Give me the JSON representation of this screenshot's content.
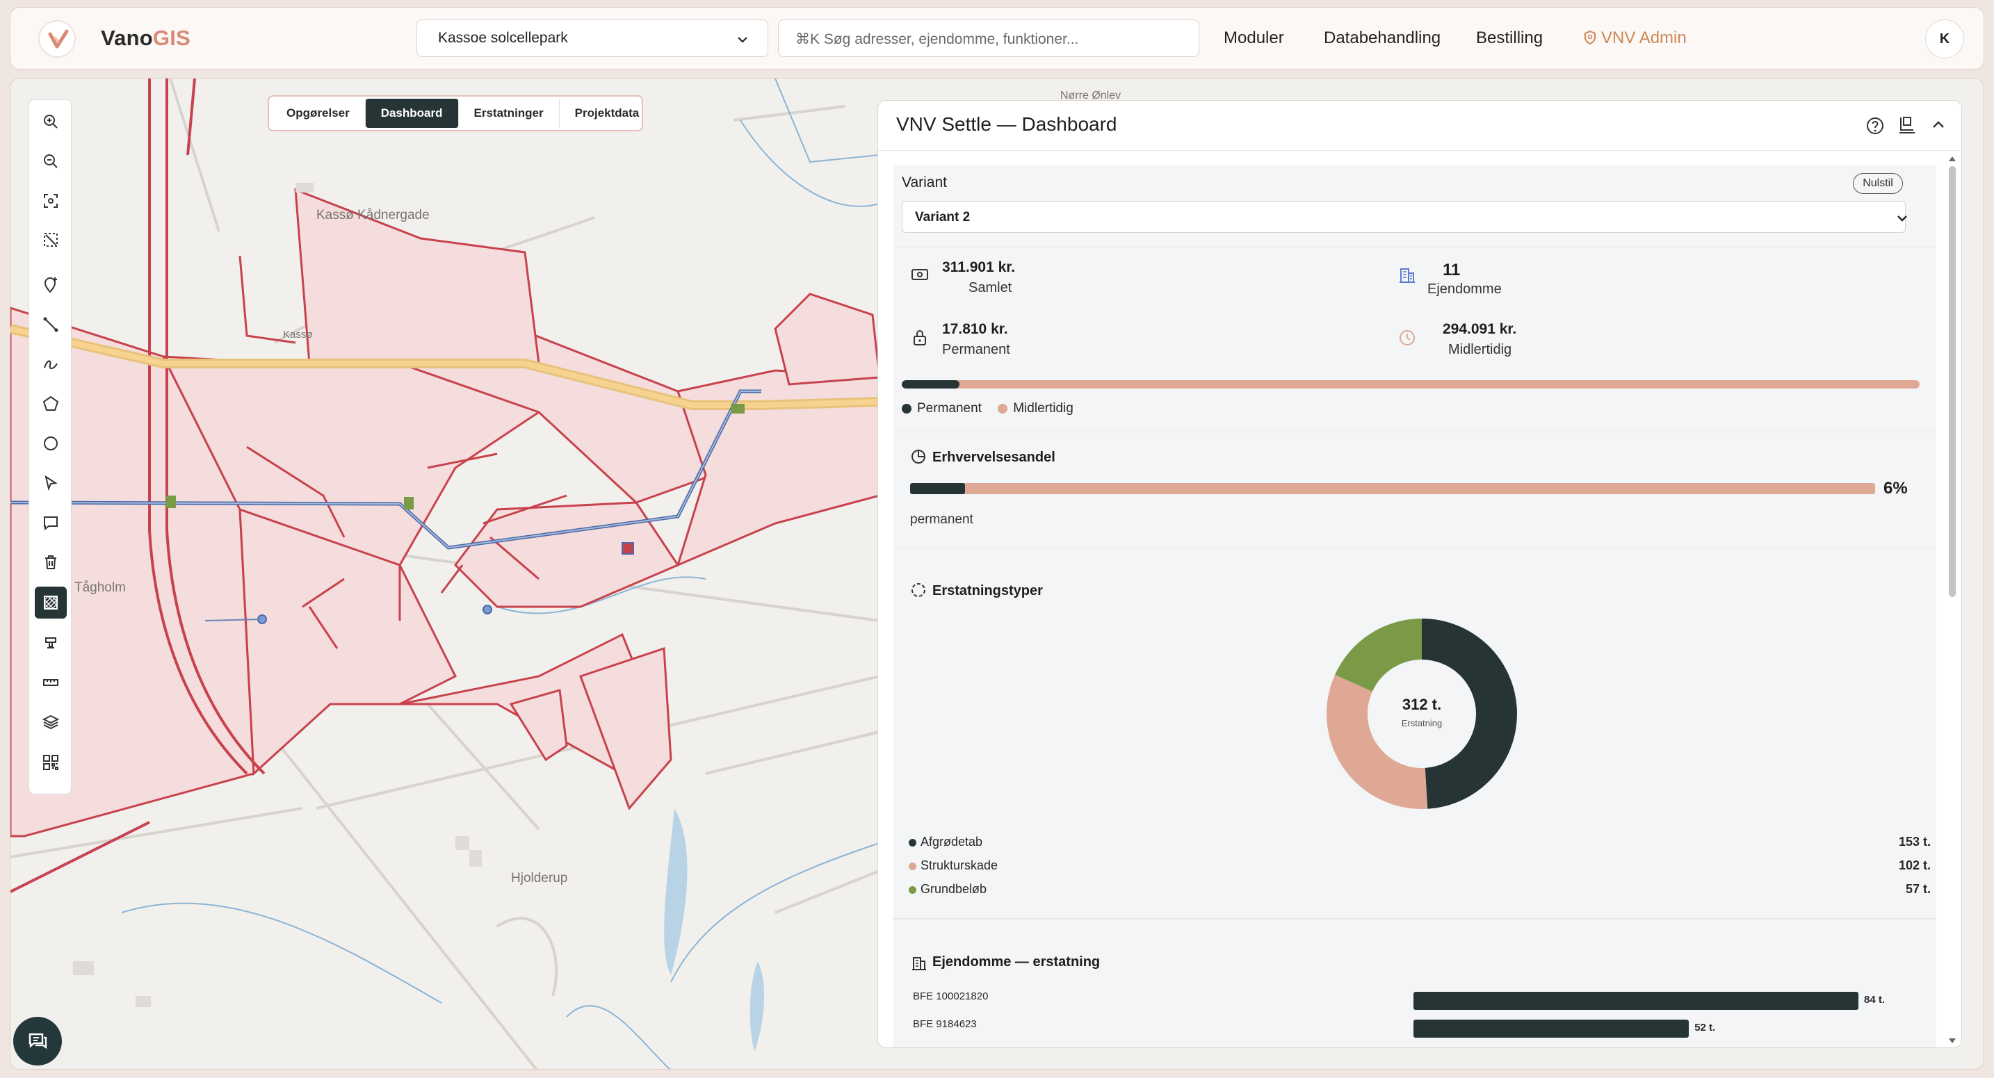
{
  "app": {
    "brand_main": "Vano",
    "brand_accent": "GIS"
  },
  "header": {
    "project": "Kassoe solcellepark",
    "search_placeholder": "⌘K Søg adresser, ejendomme, funktioner...",
    "nav": [
      "Moduler",
      "Databehandling",
      "Bestilling"
    ],
    "admin": "VNV Admin",
    "user_initial": "K"
  },
  "map": {
    "tabs": [
      "Opgørelser",
      "Dashboard",
      "Erstatninger",
      "Projektdata"
    ],
    "active_tab": "Dashboard",
    "place_labels": [
      "Kassø Kådnergade",
      "Kassø",
      "Tågholm",
      "Hjolderup",
      "Nørre Ønlev"
    ],
    "tools": [
      "zoom-in-icon",
      "zoom-out-icon",
      "fit-extent-icon",
      "clear-selection-icon",
      "add-point-icon",
      "draw-line-icon",
      "freehand-icon",
      "polygon-icon",
      "circle-icon",
      "select-icon",
      "comment-icon",
      "delete-icon",
      "grid-layer-icon",
      "stamp-icon",
      "ruler-icon",
      "layers-icon",
      "qr-icon"
    ],
    "active_tool": "grid-layer-icon"
  },
  "panel": {
    "title": "VNV Settle — Dashboard",
    "variant_label": "Variant",
    "reset_label": "Nulstil",
    "variant_value": "Variant 2",
    "stats": {
      "total_value": "311.901 kr.",
      "total_label": "Samlet",
      "properties_value": "11",
      "properties_label": "Ejendomme",
      "permanent_value": "17.810 kr.",
      "permanent_label": "Permanent",
      "temporary_value": "294.091 kr.",
      "temporary_label": "Midlertidig"
    },
    "split_fraction_permanent": 0.057,
    "split_legend": [
      "Permanent",
      "Midlertidig"
    ],
    "acquisition": {
      "title": "Erhvervelsesandel",
      "percent_text": "6%",
      "fraction": 0.057,
      "sub_label": "permanent"
    },
    "compensation_types": {
      "title": "Erstatningstyper",
      "center_value": "312 t.",
      "center_label": "Erstatning",
      "items": [
        {
          "name": "Afgrødetab",
          "value": 153,
          "display": "153 t.",
          "color": "#263436"
        },
        {
          "name": "Strukturskade",
          "value": 102,
          "display": "102 t.",
          "color": "#dea894"
        },
        {
          "name": "Grundbeløb",
          "value": 57,
          "display": "57 t.",
          "color": "#7a9a48"
        }
      ]
    },
    "properties": {
      "title": "Ejendomme — erstatning",
      "rows": [
        {
          "id": "BFE 100021820",
          "value": 84,
          "display": "84 t."
        },
        {
          "id": "BFE 9184623",
          "value": 52,
          "display": "52 t."
        }
      ],
      "max": 84
    }
  },
  "colors": {
    "dark": "#263436",
    "salmon": "#dea894",
    "green": "#7a9a48",
    "admin": "#cf8757",
    "brand_accent": "#d88a72"
  }
}
